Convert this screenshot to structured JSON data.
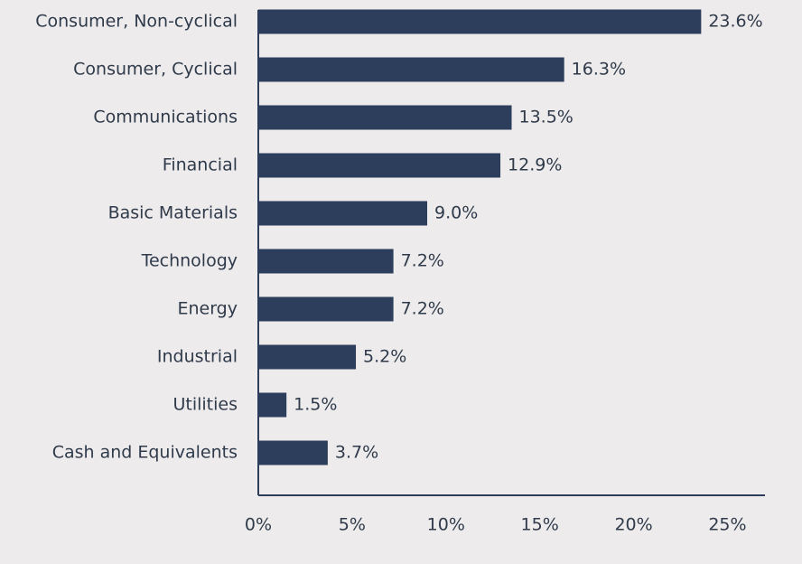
{
  "chart_data": {
    "type": "barh",
    "categories": [
      "Consumer, Non-cyclical",
      "Consumer, Cyclical",
      "Communications",
      "Financial",
      "Basic Materials",
      "Technology",
      "Energy",
      "Industrial",
      "Utilities",
      "Cash and Equivalents"
    ],
    "values": [
      23.6,
      16.3,
      13.5,
      12.9,
      9.0,
      7.2,
      7.2,
      5.2,
      1.5,
      3.7
    ],
    "value_labels": [
      "23.6%",
      "16.3%",
      "13.5%",
      "12.9%",
      "9.0%",
      "7.2%",
      "7.2%",
      "5.2%",
      "1.5%",
      "3.7%"
    ],
    "color": "#2c3e5c",
    "xlim": [
      0,
      27
    ],
    "xticks": [
      {
        "value": 0,
        "label": "0%"
      },
      {
        "value": 5,
        "label": "5%"
      },
      {
        "value": 10,
        "label": "10%"
      },
      {
        "value": 15,
        "label": "15%"
      },
      {
        "value": 20,
        "label": "20%"
      },
      {
        "value": 25,
        "label": "25%"
      }
    ],
    "grid": false
  }
}
